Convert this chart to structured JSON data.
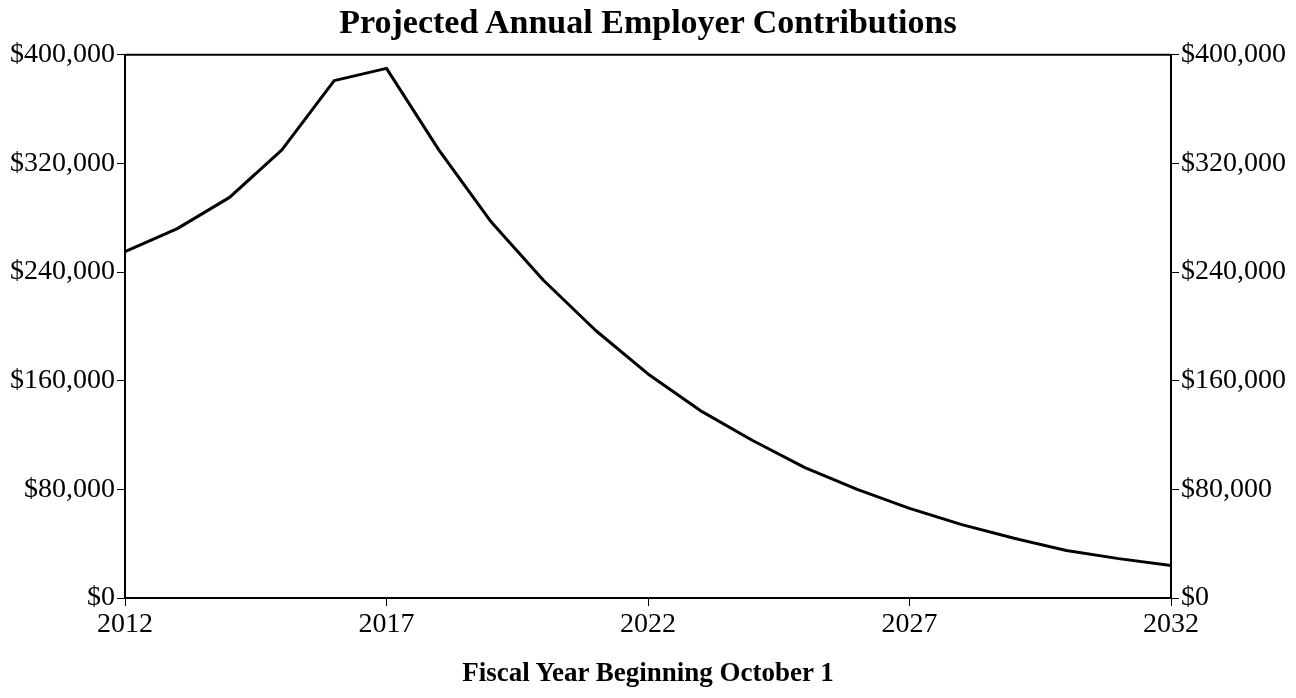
{
  "chart_data": {
    "type": "line",
    "title": "Projected Annual Employer Contributions",
    "xlabel": "Fiscal Year Beginning October 1",
    "x": [
      2012,
      2013,
      2014,
      2015,
      2016,
      2017,
      2018,
      2019,
      2020,
      2021,
      2022,
      2023,
      2024,
      2025,
      2026,
      2027,
      2028,
      2029,
      2030,
      2031,
      2032
    ],
    "series": [
      {
        "color": "#000000",
        "values": [
          255000,
          272000,
          295000,
          330000,
          381000,
          390000,
          330000,
          277000,
          234000,
          197000,
          165000,
          138000,
          116000,
          96000,
          80000,
          66000,
          54000,
          44000,
          35000,
          29000,
          24000
        ]
      }
    ],
    "xlim": [
      2012,
      2032
    ],
    "xticks": [
      2012,
      2017,
      2022,
      2027,
      2032
    ],
    "ylim": [
      0,
      400000
    ],
    "yticks": [
      {
        "value": 0,
        "label": "$0"
      },
      {
        "value": 80000,
        "label": "$80,000"
      },
      {
        "value": 160000,
        "label": "$160,000"
      },
      {
        "value": 240000,
        "label": "$240,000"
      },
      {
        "value": 320000,
        "label": "$320,000"
      },
      {
        "value": 400000,
        "label": "$400,000"
      }
    ],
    "y2lim": [
      0,
      400000
    ],
    "y2ticks": [
      {
        "value": 0,
        "label": "$0"
      },
      {
        "value": 80000,
        "label": "$80,000"
      },
      {
        "value": 160000,
        "label": "$160,000"
      },
      {
        "value": 240000,
        "label": "$240,000"
      },
      {
        "value": 320000,
        "label": "$320,000"
      },
      {
        "value": 400000,
        "label": "$400,000"
      }
    ],
    "grid": false,
    "legend": false,
    "marker": "none",
    "line_style": "solid"
  }
}
